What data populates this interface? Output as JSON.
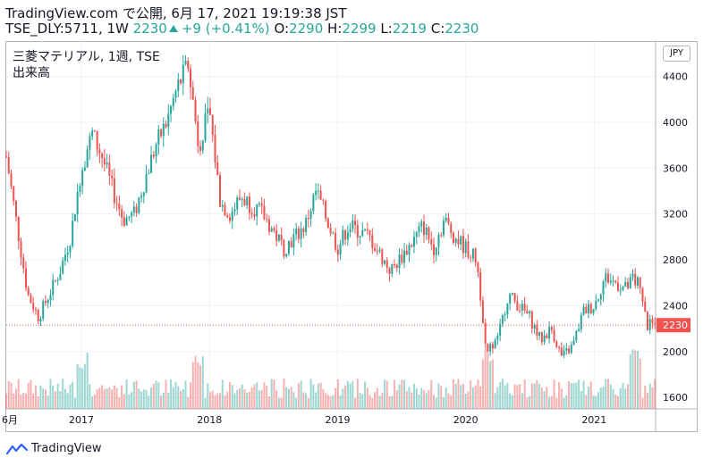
{
  "header": {
    "line1": "TradingView.com で公開, 6月 17, 2021 19:19:38 JST",
    "symbol": "TSE_DLY:5711, 1W",
    "last": "2230",
    "change": "+9 (+0.41%)",
    "o_label": "O:",
    "o_value": "2290",
    "h_label": "H:",
    "h_value": "2299",
    "l_label": "L:",
    "l_value": "2219",
    "c_label": "C:",
    "c_value": "2230"
  },
  "legend": {
    "title": "三菱マテリアル, 1週, TSE",
    "volume_label": "出来高"
  },
  "currency": "JPY",
  "footer": {
    "brand": "TradingView"
  },
  "colors": {
    "up": "#26a69a",
    "down": "#ef5350",
    "last_price": "#ef5350"
  },
  "chart_data": {
    "type": "candlestick",
    "title": "三菱マテリアル, 1週, TSE",
    "ylim": [
      1500,
      4700
    ],
    "yticks": [
      1600,
      2000,
      2400,
      2800,
      3200,
      3600,
      4000,
      4400
    ],
    "x_tick_labels": [
      "6月",
      "2017",
      "2018",
      "2019",
      "2020",
      "2021"
    ],
    "last_price": 2230,
    "series": [
      {
        "name": "price",
        "anchors": [
          [
            "2016-06",
            3700
          ],
          [
            "2016-08",
            2500
          ],
          [
            "2016-09",
            2300
          ],
          [
            "2016-11",
            2700
          ],
          [
            "2016-12",
            3000
          ],
          [
            "2017-01",
            3600
          ],
          [
            "2017-02",
            3900
          ],
          [
            "2017-03",
            3700
          ],
          [
            "2017-04",
            3400
          ],
          [
            "2017-05",
            3150
          ],
          [
            "2017-06",
            3200
          ],
          [
            "2017-07",
            3500
          ],
          [
            "2017-08",
            3800
          ],
          [
            "2017-09",
            4000
          ],
          [
            "2017-10",
            4300
          ],
          [
            "2017-11",
            4500
          ],
          [
            "2017-12",
            3800
          ],
          [
            "2018-01",
            4100
          ],
          [
            "2018-02",
            3300
          ],
          [
            "2018-03",
            3200
          ],
          [
            "2018-04",
            3350
          ],
          [
            "2018-06",
            3200
          ],
          [
            "2018-08",
            2900
          ],
          [
            "2018-10",
            3100
          ],
          [
            "2018-11",
            3400
          ],
          [
            "2019-01",
            2900
          ],
          [
            "2019-02",
            3100
          ],
          [
            "2019-04",
            3000
          ],
          [
            "2019-06",
            2700
          ],
          [
            "2019-08",
            2950
          ],
          [
            "2019-09",
            3100
          ],
          [
            "2019-10",
            2900
          ],
          [
            "2019-11",
            3150
          ],
          [
            "2019-12",
            3000
          ],
          [
            "2020-02",
            2800
          ],
          [
            "2020-03",
            2000
          ],
          [
            "2020-04",
            2100
          ],
          [
            "2020-05",
            2500
          ],
          [
            "2020-07",
            2300
          ],
          [
            "2020-08",
            2100
          ],
          [
            "2020-09",
            2200
          ],
          [
            "2020-10",
            1950
          ],
          [
            "2020-11",
            2050
          ],
          [
            "2020-12",
            2350
          ],
          [
            "2021-01",
            2400
          ],
          [
            "2021-02",
            2650
          ],
          [
            "2021-04",
            2550
          ],
          [
            "2021-05",
            2650
          ],
          [
            "2021-06",
            2230
          ]
        ]
      }
    ],
    "volume": {
      "name": "出来高",
      "spikes": [
        "2017-01",
        "2017-12",
        "2020-03",
        "2021-05"
      ]
    }
  }
}
